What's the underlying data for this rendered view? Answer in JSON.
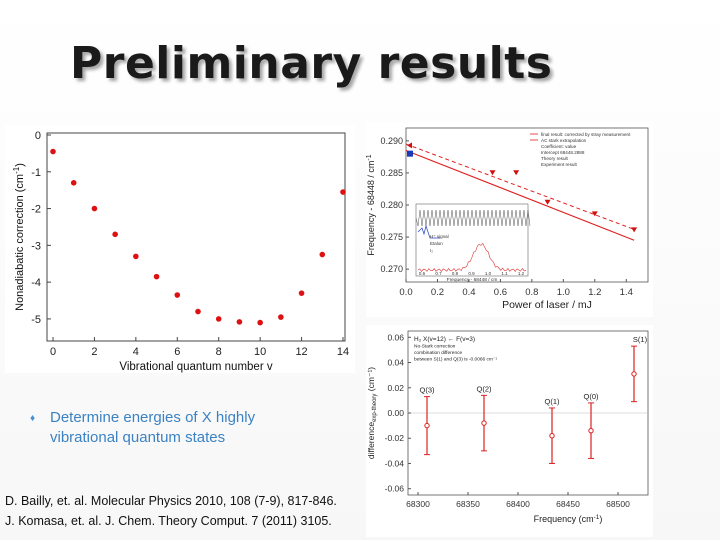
{
  "slide": {
    "title": "Preliminary results",
    "bullets": [
      {
        "text": "Determine energies of  X highly vibrational quantum states"
      }
    ],
    "references": [
      "D. Bailly, et. al.  Molecular Physics 2010, 108 (7-9), 817-846.",
      "J. Komasa, et. al. J. Chem. Theory Comput. 7 (2011) 3105."
    ]
  },
  "colors": {
    "accent_text": "#3b82c4",
    "marker_red": "#dd1111",
    "theory_blue": "#1a3ab8"
  },
  "chart_data": [
    {
      "type": "scatter",
      "xlabel": "Vibrational quantum number v",
      "ylabel": "Nonadiabatic correction (cm",
      "ylabel_sup": "-1",
      "ylabel_close": ")",
      "xlim": [
        0,
        14
      ],
      "ylim": [
        -5.6,
        0
      ],
      "xticks": [
        0,
        2,
        4,
        6,
        8,
        10,
        12,
        14
      ],
      "yticks": [
        0,
        -1,
        -2,
        -3,
        -4,
        -5
      ],
      "series": [
        {
          "x": [
            0,
            1,
            2,
            3,
            4,
            5,
            6,
            7,
            8,
            9,
            10,
            11,
            12,
            13,
            14
          ],
          "y": [
            -0.45,
            -1.3,
            -2.0,
            -2.7,
            -3.3,
            -3.85,
            -4.35,
            -4.8,
            -5.0,
            -5.08,
            -5.1,
            -4.95,
            -4.3,
            -3.25,
            -1.55
          ]
        }
      ]
    },
    {
      "type": "line",
      "xlabel": "Power of laser / mJ",
      "ylabel": "Frequency - 68448 / cm",
      "ylabel_sup": "-1",
      "xlim": [
        0,
        1.5
      ],
      "ylim": [
        0.268,
        0.292
      ],
      "xticks": [
        0.0,
        0.2,
        0.4,
        0.6,
        0.8,
        1.0,
        1.2,
        1.4
      ],
      "yticks": [
        0.27,
        0.275,
        0.28,
        0.285,
        0.29
      ],
      "legend": [
        "final result: corrected by stray measurement",
        "AC stark extrapolation",
        "Coefficient: value",
        "Intercept 68448.2888",
        "Theory result",
        "Experiment result"
      ],
      "lines": [
        {
          "x": [
            0,
            1.45
          ],
          "y": [
            0.2885,
            0.2745
          ]
        },
        {
          "x": [
            0,
            1.45
          ],
          "y": [
            0.2895,
            0.2762
          ]
        }
      ],
      "triangles": {
        "x": [
          0.55,
          0.7,
          0.9,
          1.2,
          1.45
        ],
        "y": [
          0.2851,
          0.2851,
          0.2805,
          0.2787,
          0.2762
        ]
      },
      "theory_point": {
        "x": 0.0,
        "y": 0.288
      },
      "experiment_point": {
        "x": 0.0,
        "y": 0.2893
      },
      "inset": {
        "xlabel": "Frequency - 68448 / cm",
        "xticks": [
          "0.6",
          "0.7",
          "0.8",
          "0.9",
          "1.0",
          "1.1",
          "1.2"
        ],
        "legend": [
          "H⁺ signal",
          "Etalon",
          "I₂"
        ]
      }
    },
    {
      "type": "scatter",
      "xlabel": "Frequency (cm",
      "xlabel_sup": "-1",
      "xlabel_close": ")",
      "ylabel": "difference",
      "ylabel_sub": "exp-theory",
      "ylabel_unit": " (cm⁻¹)",
      "xlim": [
        68290,
        68530
      ],
      "ylim": [
        -0.065,
        0.065
      ],
      "xticks": [
        68300,
        68350,
        68400,
        68450,
        68500
      ],
      "yticks": [
        0.06,
        0.04,
        0.02,
        0.0,
        -0.02,
        -0.04,
        -0.06
      ],
      "ytick_labels": [
        "0.06",
        "0.04",
        "0.02",
        "0.00",
        "-0.02",
        "-0.04",
        "-0.06"
      ],
      "note": [
        "H₂ X(v=12) ← F(v=3)",
        "No-Stark correction",
        "combination difference",
        "between S(1) and Q(3) is -0.0066 cm⁻¹"
      ],
      "points": [
        {
          "label": "Q(3)",
          "x": 68309,
          "y": -0.01,
          "err": 0.023
        },
        {
          "label": "Q(2)",
          "x": 68366,
          "y": -0.008,
          "err": 0.022
        },
        {
          "label": "Q(1)",
          "x": 68434,
          "y": -0.018,
          "err": 0.022
        },
        {
          "label": "Q(0)",
          "x": 68473,
          "y": -0.014,
          "err": 0.022
        },
        {
          "label": "S(1)",
          "x": 68516,
          "y": 0.031,
          "err": 0.022
        }
      ]
    }
  ]
}
